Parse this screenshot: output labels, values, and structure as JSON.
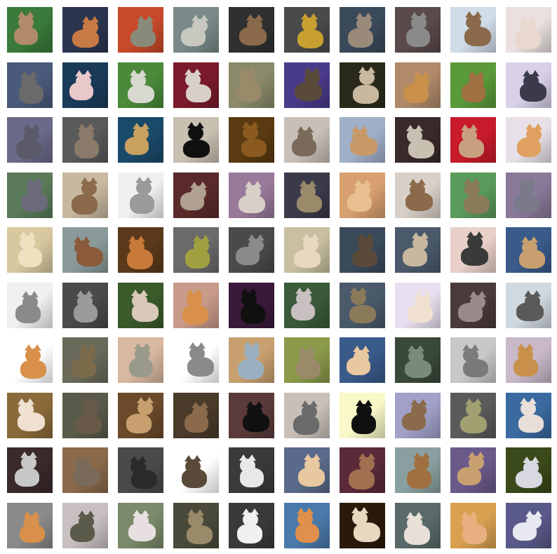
{
  "grid": {
    "rows": 10,
    "cols": 10,
    "subject": "cat photographs",
    "tiles": [
      {
        "bg": "#3a7a3a",
        "fg": "#b08a6a"
      },
      {
        "bg": "#2b3550",
        "fg": "#c87a44"
      },
      {
        "bg": "#c84a2a",
        "fg": "#8a8a7a"
      },
      {
        "bg": "#7a8a8a",
        "fg": "#c8c8c0"
      },
      {
        "bg": "#303030",
        "fg": "#8a6a4a"
      },
      {
        "bg": "#4a4a4a",
        "fg": "#c8a030"
      },
      {
        "bg": "#3a4a5a",
        "fg": "#9a8a7a"
      },
      {
        "bg": "#5a4a4a",
        "fg": "#8a8a8a"
      },
      {
        "bg": "#d0dce8",
        "fg": "#8a6a4a"
      },
      {
        "bg": "#eae0e0",
        "fg": "#e8d8d0"
      },
      {
        "bg": "#4a5a7a",
        "fg": "#6a6a6a"
      },
      {
        "bg": "#1a3a5a",
        "fg": "#e8c8c8"
      },
      {
        "bg": "#4a8a3a",
        "fg": "#d8d8d0"
      },
      {
        "bg": "#7a1a2a",
        "fg": "#d8d0c8"
      },
      {
        "bg": "#8a8a6a",
        "fg": "#9a8a6a"
      },
      {
        "bg": "#4a3a8a",
        "fg": "#5a4a3a"
      },
      {
        "bg": "#2a2a1a",
        "fg": "#c8b8a0"
      },
      {
        "bg": "#b08a6a",
        "fg": "#c8904a"
      },
      {
        "bg": "#5a9a3a",
        "fg": "#a07040"
      },
      {
        "bg": "#d8d0e8",
        "fg": "#3a3a4a"
      },
      {
        "bg": "#6a6a8a",
        "fg": "#5a5a6a"
      },
      {
        "bg": "#5a5a5a",
        "fg": "#8a7a6a"
      },
      {
        "bg": "#1a4a6a",
        "fg": "#c8a060"
      },
      {
        "bg": "#c8c0b0",
        "fg": "#101010"
      },
      {
        "bg": "#5a3a10",
        "fg": "#8a5a20"
      },
      {
        "bg": "#c8c0b8",
        "fg": "#7a6a5a"
      },
      {
        "bg": "#a0b0c8",
        "fg": "#c89a6a"
      },
      {
        "bg": "#3a2a2a",
        "fg": "#c8c0b0"
      },
      {
        "bg": "#c81a2a",
        "fg": "#c8a080"
      },
      {
        "bg": "#e8e0e8",
        "fg": "#e0a060"
      },
      {
        "bg": "#5a7a5a",
        "fg": "#6a6a7a"
      },
      {
        "bg": "#c8b8a0",
        "fg": "#8a6a4a"
      },
      {
        "bg": "#f0f0f0",
        "fg": "#9a9a9a"
      },
      {
        "bg": "#5a2a2a",
        "fg": "#b0a090"
      },
      {
        "bg": "#9a7a9a",
        "fg": "#d8d0c8"
      },
      {
        "bg": "#3a3a4a",
        "fg": "#9a8a6a"
      },
      {
        "bg": "#d8a070",
        "fg": "#e8c090"
      },
      {
        "bg": "#d8d0c8",
        "fg": "#8a6a4a"
      },
      {
        "bg": "#5a9a5a",
        "fg": "#8a7a5a"
      },
      {
        "bg": "#8a7a9a",
        "fg": "#7a7a8a"
      },
      {
        "bg": "#d8c8a0",
        "fg": "#f0e0c0"
      },
      {
        "bg": "#8a9a9a",
        "fg": "#8a5a3a"
      },
      {
        "bg": "#5a3a1a",
        "fg": "#c87a3a"
      },
      {
        "bg": "#6a6a6a",
        "fg": "#a0a040"
      },
      {
        "bg": "#4a4a4a",
        "fg": "#8a8a8a"
      },
      {
        "bg": "#c8c0a0",
        "fg": "#e8d8c0"
      },
      {
        "bg": "#3a4a5a",
        "fg": "#5a4a3a"
      },
      {
        "bg": "#4a5a6a",
        "fg": "#c8b8a0"
      },
      {
        "bg": "#e8d0c8",
        "fg": "#3a3a3a"
      },
      {
        "bg": "#3a5a8a",
        "fg": "#c8a070"
      },
      {
        "bg": "#f0f0f0",
        "fg": "#8a8a8a"
      },
      {
        "bg": "#4a4a4a",
        "fg": "#9a9a9a"
      },
      {
        "bg": "#3a5a2a",
        "fg": "#d8c8b8"
      },
      {
        "bg": "#c89a8a",
        "fg": "#d8904a"
      },
      {
        "bg": "#3a1a3a",
        "fg": "#101010"
      },
      {
        "bg": "#3a5a3a",
        "fg": "#c8c0c0"
      },
      {
        "bg": "#4a5a6a",
        "fg": "#8a7a5a"
      },
      {
        "bg": "#e8e0f0",
        "fg": "#f0e0d0"
      },
      {
        "bg": "#4a3a3a",
        "fg": "#9a8a8a"
      },
      {
        "bg": "#d0d8e0",
        "fg": "#5a5a5a"
      },
      {
        "bg": "#ffffff",
        "fg": "#d8904a"
      },
      {
        "bg": "#6a6a5a",
        "fg": "#7a6a4a"
      },
      {
        "bg": "#d8b8a0",
        "fg": "#9a9a8a"
      },
      {
        "bg": "#ffffff",
        "fg": "#8a8a8a"
      },
      {
        "bg": "#c8a070",
        "fg": "#9ab0c0"
      },
      {
        "bg": "#8a9a4a",
        "fg": "#9a8a6a"
      },
      {
        "bg": "#3a5a8a",
        "fg": "#e8c8a0"
      },
      {
        "bg": "#3a4a3a",
        "fg": "#7a8a7a"
      },
      {
        "bg": "#c8c8c8",
        "fg": "#7a7a7a"
      },
      {
        "bg": "#c8b8c8",
        "fg": "#c8904a"
      },
      {
        "bg": "#8a6a3a",
        "fg": "#f0e0d0"
      },
      {
        "bg": "#5a5a4a",
        "fg": "#6a5a4a"
      },
      {
        "bg": "#6a4a2a",
        "fg": "#c8a070"
      },
      {
        "bg": "#4a3a2a",
        "fg": "#8a6a4a"
      },
      {
        "bg": "#5a3a3a",
        "fg": "#101010"
      },
      {
        "bg": "#c8c0b8",
        "fg": "#6a6a6a"
      },
      {
        "bg": "#f8f8c8",
        "fg": "#101010"
      },
      {
        "bg": "#a0a0c8",
        "fg": "#8a6a4a"
      },
      {
        "bg": "#5a5a5a",
        "fg": "#a0a070"
      },
      {
        "bg": "#3a6aa0",
        "fg": "#e8e0d8"
      },
      {
        "bg": "#3a2a2a",
        "fg": "#c8c8c8"
      },
      {
        "bg": "#8a6a4a",
        "fg": "#7a6a5a"
      },
      {
        "bg": "#4a4a4a",
        "fg": "#2a2a2a"
      },
      {
        "bg": "#ffffff",
        "fg": "#5a4a3a"
      },
      {
        "bg": "#3a3a3a",
        "fg": "#e8e8e8"
      },
      {
        "bg": "#5a6a8a",
        "fg": "#e8c8a0"
      },
      {
        "bg": "#5a2a3a",
        "fg": "#a07050"
      },
      {
        "bg": "#8aa0a0",
        "fg": "#a07040"
      },
      {
        "bg": "#6a5a8a",
        "fg": "#c8a070"
      },
      {
        "bg": "#3a4a1a",
        "fg": "#d8d8e0"
      },
      {
        "bg": "#8a8a8a",
        "fg": "#d8904a"
      },
      {
        "bg": "#c8c0c0",
        "fg": "#5a5a4a"
      },
      {
        "bg": "#7a8a6a",
        "fg": "#e8e0e0"
      },
      {
        "bg": "#4a4a3a",
        "fg": "#9a8a6a"
      },
      {
        "bg": "#3a3a3a",
        "fg": "#f0f0f0"
      },
      {
        "bg": "#4a7aaa",
        "fg": "#e0904a"
      },
      {
        "bg": "#2a1a0a",
        "fg": "#e8d8c0"
      },
      {
        "bg": "#5a6a6a",
        "fg": "#e8e0d8"
      },
      {
        "bg": "#d8a050",
        "fg": "#e8b080"
      },
      {
        "bg": "#5a5a8a",
        "fg": "#e8e8f0"
      }
    ]
  }
}
